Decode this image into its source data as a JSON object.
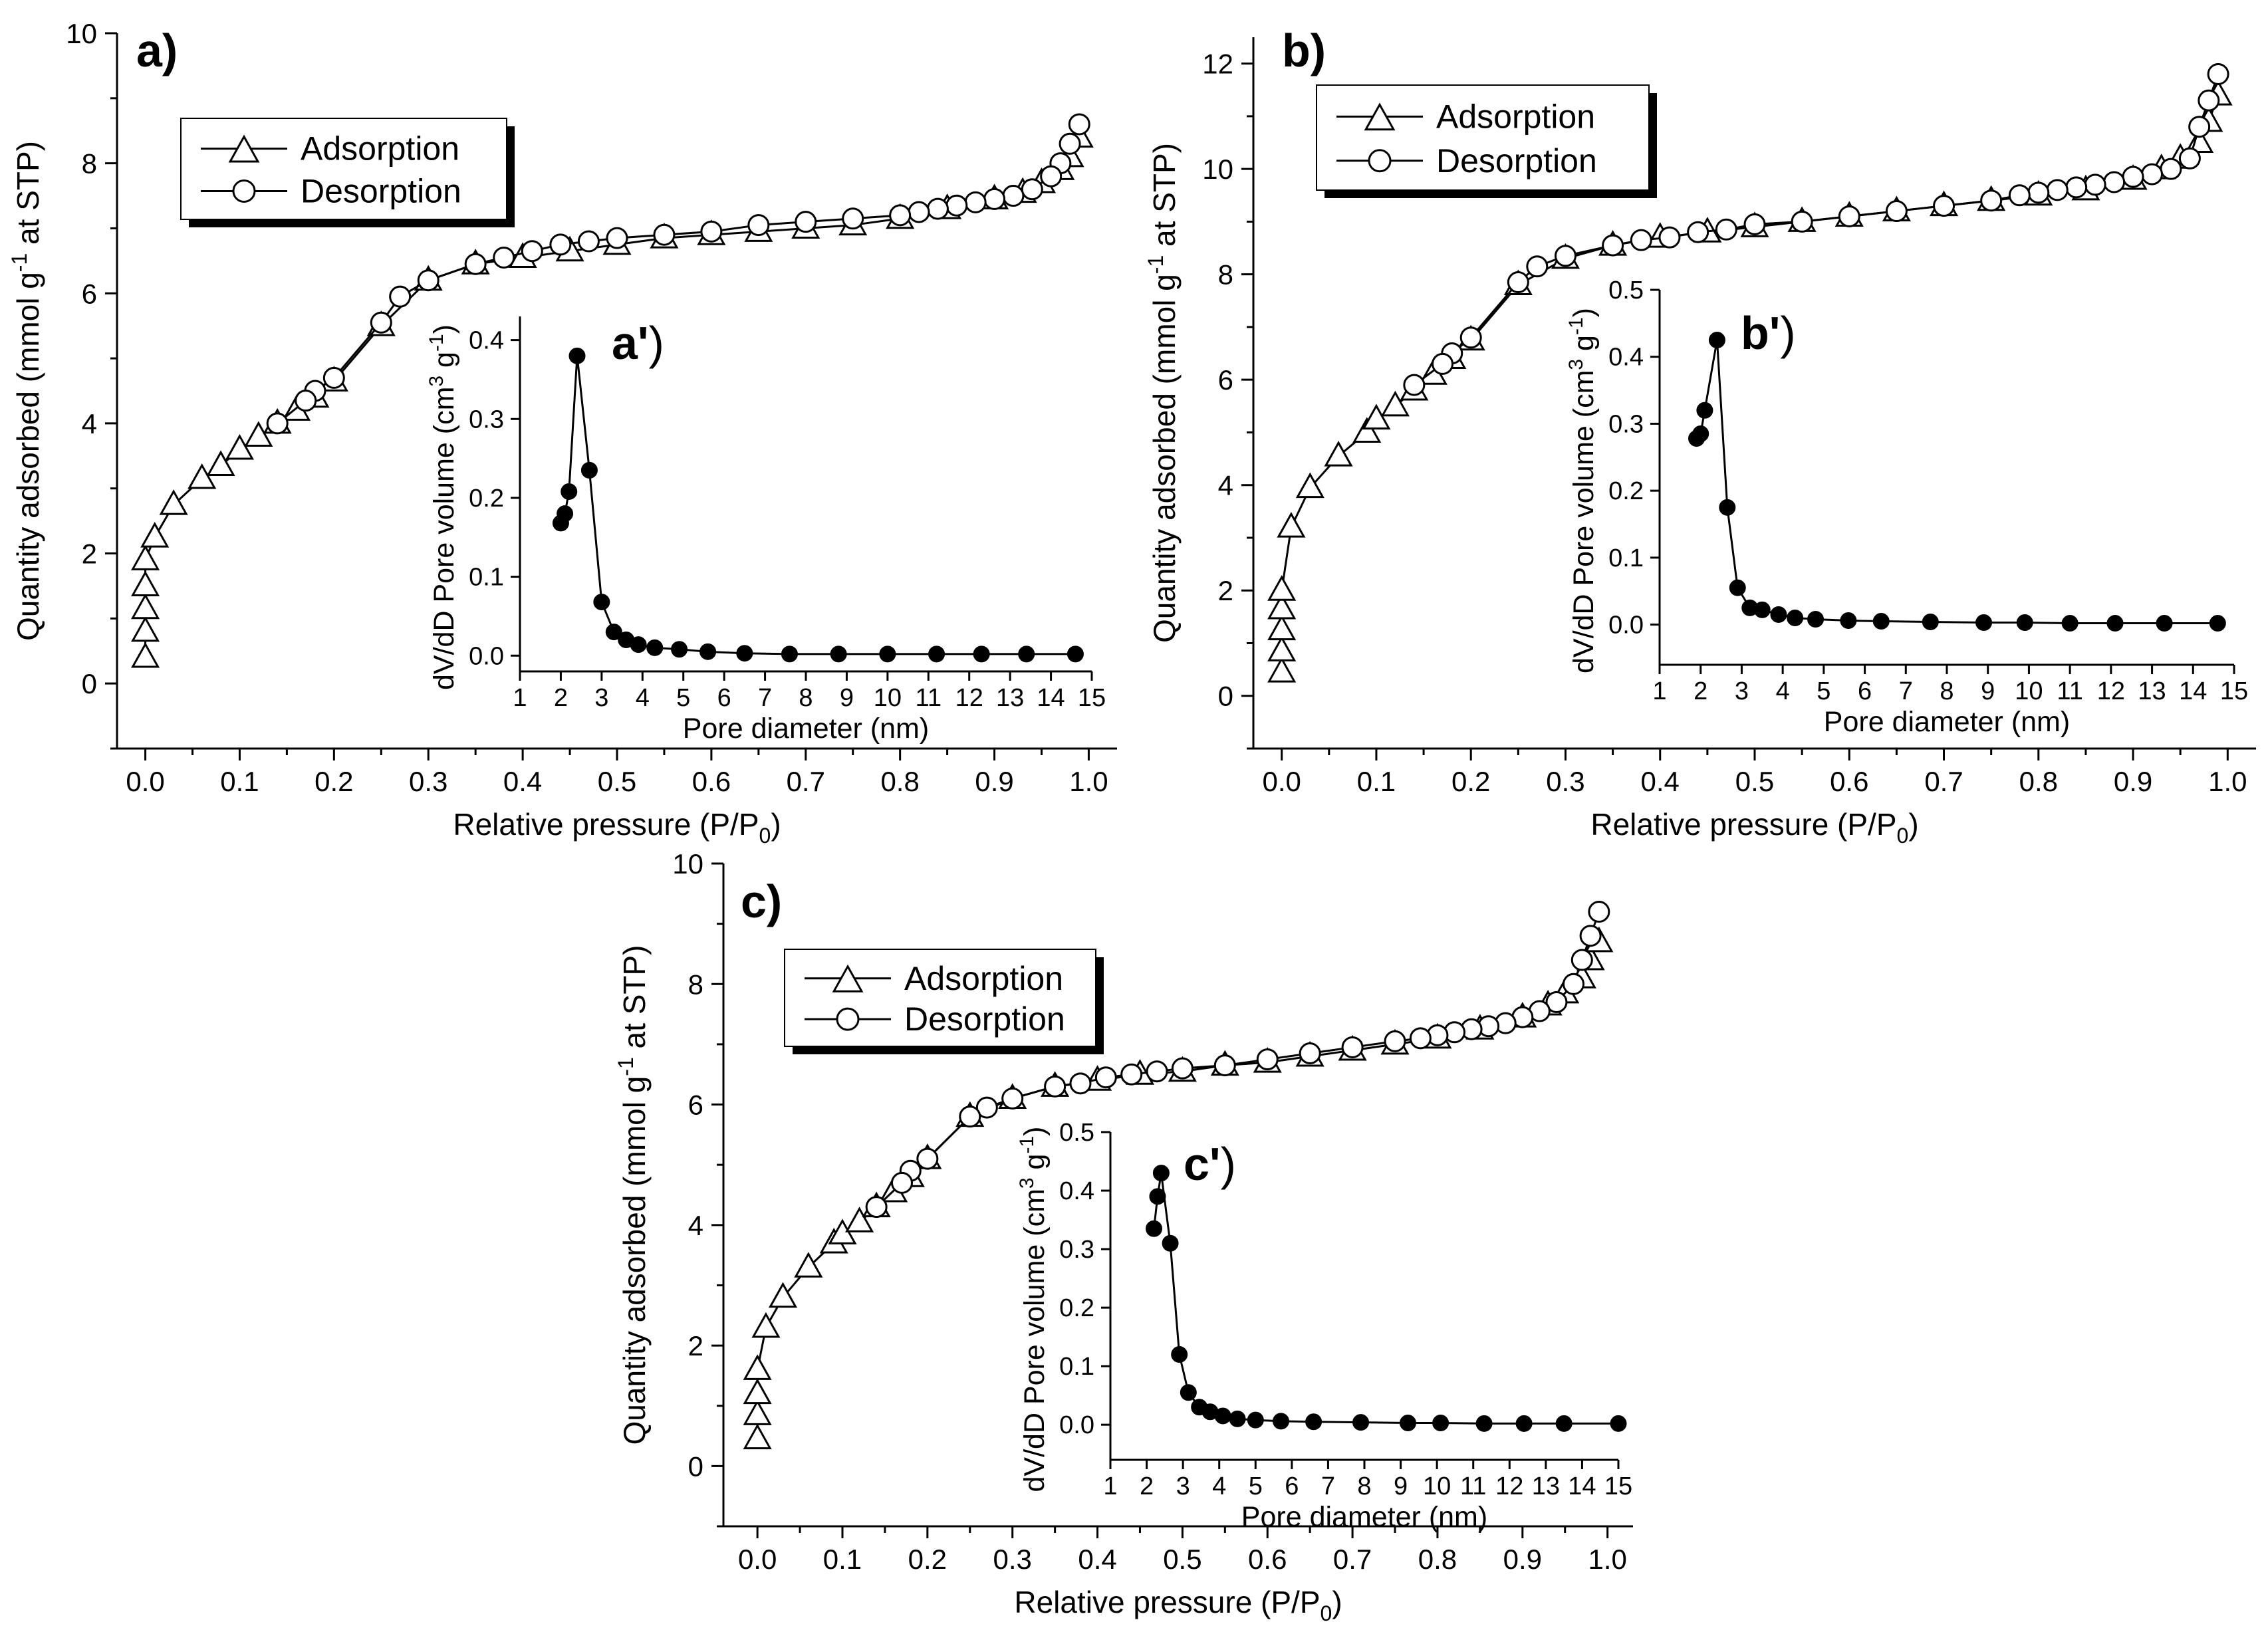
{
  "chart_data": [
    {
      "type": "line",
      "panel_label": "a)",
      "xlabel": "Relative pressure (P/P",
      "xlabel_sub": "0",
      "xlabel_close": ")",
      "ylabel": "Quantity adsorbed (mmol g",
      "ylabel_sup": "-1",
      "ylabel_rest": " at STP)",
      "xlim": [
        -0.03,
        1.03
      ],
      "ylim": [
        -1,
        10
      ],
      "xticks": [
        0.0,
        0.1,
        0.2,
        0.3,
        0.4,
        0.5,
        0.6,
        0.7,
        0.8,
        0.9,
        1.0
      ],
      "xtick_labels": [
        "0.0",
        "0.1",
        "0.2",
        "0.3",
        "0.4",
        "0.5",
        "0.6",
        "0.7",
        "0.8",
        "0.9",
        "1.0"
      ],
      "yticks": [
        0,
        2,
        4,
        6,
        8,
        10
      ],
      "ytick_labels": [
        "0",
        "2",
        "4",
        "6",
        "8",
        "10"
      ],
      "legend": [
        "Adsorption",
        "Desorption"
      ],
      "series": [
        {
          "name": "Adsorption",
          "marker": "triangle",
          "x": [
            0.0,
            0.0,
            0.0,
            0.0,
            0.0,
            0.01,
            0.03,
            0.06,
            0.08,
            0.1,
            0.12,
            0.14,
            0.16,
            0.18,
            0.2,
            0.25,
            0.3,
            0.35,
            0.4,
            0.45,
            0.5,
            0.55,
            0.6,
            0.65,
            0.7,
            0.75,
            0.8,
            0.85,
            0.9,
            0.93,
            0.95,
            0.97,
            0.98,
            0.99
          ],
          "y": [
            0.4,
            0.8,
            1.15,
            1.5,
            1.9,
            2.25,
            2.75,
            3.15,
            3.35,
            3.6,
            3.8,
            4.0,
            4.2,
            4.4,
            4.65,
            5.5,
            6.2,
            6.45,
            6.55,
            6.65,
            6.75,
            6.85,
            6.9,
            6.95,
            7.0,
            7.05,
            7.15,
            7.3,
            7.45,
            7.55,
            7.7,
            7.9,
            8.1,
            8.4
          ]
        },
        {
          "name": "Desorption",
          "marker": "circle",
          "x": [
            0.99,
            0.98,
            0.97,
            0.96,
            0.94,
            0.92,
            0.9,
            0.88,
            0.86,
            0.84,
            0.82,
            0.8,
            0.75,
            0.7,
            0.65,
            0.6,
            0.55,
            0.5,
            0.47,
            0.44,
            0.41,
            0.38,
            0.35,
            0.3,
            0.27,
            0.25,
            0.2,
            0.18,
            0.17,
            0.14
          ],
          "y": [
            8.6,
            8.3,
            8.0,
            7.8,
            7.6,
            7.5,
            7.45,
            7.4,
            7.35,
            7.3,
            7.25,
            7.2,
            7.15,
            7.1,
            7.05,
            6.95,
            6.9,
            6.85,
            6.8,
            6.75,
            6.65,
            6.55,
            6.45,
            6.2,
            5.95,
            5.55,
            4.7,
            4.5,
            4.35,
            4.0
          ]
        }
      ],
      "inset": {
        "label": "a'",
        "label_close": ")",
        "xlabel": "Pore diameter (nm)",
        "ylabel": "dV/dD Pore volume (cm",
        "ylabel_sup1": "3",
        "ylabel_mid": " g",
        "ylabel_sup2": "-1",
        "ylabel_close": ")",
        "xlim": [
          1,
          15
        ],
        "ylim": [
          -0.02,
          0.43
        ],
        "xticks": [
          1,
          2,
          3,
          4,
          5,
          6,
          7,
          8,
          9,
          10,
          11,
          12,
          13,
          14,
          15
        ],
        "xtick_labels": [
          "1",
          "2",
          "3",
          "4",
          "5",
          "6",
          "7",
          "8",
          "9",
          "10",
          "11",
          "12",
          "13",
          "14",
          "15"
        ],
        "yticks": [
          0.0,
          0.1,
          0.2,
          0.3,
          0.4
        ],
        "ytick_labels": [
          "0.0",
          "0.1",
          "0.2",
          "0.3",
          "0.4"
        ],
        "x": [
          2.0,
          2.1,
          2.2,
          2.4,
          2.7,
          3.0,
          3.3,
          3.6,
          3.9,
          4.3,
          4.9,
          5.6,
          6.5,
          7.6,
          8.8,
          10.0,
          11.2,
          12.3,
          13.4,
          14.6
        ],
        "y": [
          0.168,
          0.18,
          0.208,
          0.38,
          0.235,
          0.068,
          0.03,
          0.02,
          0.014,
          0.01,
          0.008,
          0.005,
          0.003,
          0.002,
          0.002,
          0.002,
          0.002,
          0.002,
          0.002,
          0.002
        ]
      }
    },
    {
      "type": "line",
      "panel_label": "b)",
      "xlabel": "Relative pressure (P/P",
      "xlabel_sub": "0",
      "xlabel_close": ")",
      "ylabel": "Quantity adsorbed (mmol g",
      "ylabel_sup": "-1",
      "ylabel_rest": " at STP)",
      "xlim": [
        -0.03,
        1.03
      ],
      "ylim": [
        -1,
        12.5
      ],
      "xticks": [
        0.0,
        0.1,
        0.2,
        0.3,
        0.4,
        0.5,
        0.6,
        0.7,
        0.8,
        0.9,
        1.0
      ],
      "xtick_labels": [
        "0.0",
        "0.1",
        "0.2",
        "0.3",
        "0.4",
        "0.5",
        "0.6",
        "0.7",
        "0.8",
        "0.9",
        "1.0"
      ],
      "yticks": [
        0,
        2,
        4,
        6,
        8,
        10,
        12
      ],
      "ytick_labels": [
        "0",
        "2",
        "4",
        "6",
        "8",
        "10",
        "12"
      ],
      "legend": [
        "Adsorption",
        "Desorption"
      ],
      "series": [
        {
          "name": "Adsorption",
          "marker": "triangle",
          "x": [
            0.0,
            0.0,
            0.0,
            0.0,
            0.0,
            0.01,
            0.03,
            0.06,
            0.09,
            0.1,
            0.12,
            0.14,
            0.16,
            0.18,
            0.2,
            0.25,
            0.3,
            0.35,
            0.4,
            0.45,
            0.5,
            0.55,
            0.6,
            0.65,
            0.7,
            0.75,
            0.8,
            0.85,
            0.9,
            0.93,
            0.95,
            0.97,
            0.98,
            0.99
          ],
          "y": [
            0.45,
            0.85,
            1.25,
            1.65,
            2.0,
            3.2,
            3.95,
            4.55,
            5.0,
            5.25,
            5.5,
            5.8,
            6.1,
            6.4,
            6.75,
            7.8,
            8.3,
            8.55,
            8.7,
            8.8,
            8.9,
            9.0,
            9.1,
            9.2,
            9.3,
            9.4,
            9.5,
            9.6,
            9.8,
            10.0,
            10.2,
            10.5,
            10.9,
            11.4
          ]
        },
        {
          "name": "Desorption",
          "marker": "circle",
          "x": [
            0.99,
            0.98,
            0.97,
            0.96,
            0.94,
            0.92,
            0.9,
            0.88,
            0.86,
            0.84,
            0.82,
            0.8,
            0.78,
            0.75,
            0.7,
            0.65,
            0.6,
            0.55,
            0.5,
            0.47,
            0.44,
            0.41,
            0.38,
            0.35,
            0.3,
            0.27,
            0.25,
            0.2,
            0.18,
            0.17,
            0.14
          ],
          "y": [
            11.8,
            11.3,
            10.8,
            10.2,
            10.0,
            9.9,
            9.85,
            9.75,
            9.7,
            9.65,
            9.6,
            9.55,
            9.5,
            9.4,
            9.3,
            9.2,
            9.1,
            9.0,
            8.95,
            8.85,
            8.8,
            8.7,
            8.65,
            8.55,
            8.35,
            8.15,
            7.85,
            6.8,
            6.5,
            6.3,
            5.9
          ]
        }
      ],
      "inset": {
        "label": "b'",
        "label_close": ")",
        "xlabel": "Pore diameter (nm)",
        "ylabel": "dV/dD Pore volume (cm",
        "ylabel_sup1": "3",
        "ylabel_mid": " g",
        "ylabel_sup2": "-1",
        "ylabel_close": ")",
        "xlim": [
          1,
          15
        ],
        "ylim": [
          -0.06,
          0.5
        ],
        "xticks": [
          1,
          2,
          3,
          4,
          5,
          6,
          7,
          8,
          9,
          10,
          11,
          12,
          13,
          14,
          15
        ],
        "xtick_labels": [
          "1",
          "2",
          "3",
          "4",
          "5",
          "6",
          "7",
          "8",
          "9",
          "10",
          "11",
          "12",
          "13",
          "14",
          "15"
        ],
        "yticks": [
          0.0,
          0.1,
          0.2,
          0.3,
          0.4,
          0.5
        ],
        "ytick_labels": [
          "0.0",
          "0.1",
          "0.2",
          "0.3",
          "0.4",
          "0.5"
        ],
        "x": [
          1.9,
          2.0,
          2.1,
          2.4,
          2.65,
          2.9,
          3.2,
          3.5,
          3.9,
          4.3,
          4.8,
          5.6,
          6.4,
          7.6,
          8.9,
          9.9,
          11.0,
          12.1,
          13.3,
          14.6
        ],
        "y": [
          0.278,
          0.285,
          0.32,
          0.425,
          0.175,
          0.055,
          0.025,
          0.022,
          0.015,
          0.01,
          0.008,
          0.006,
          0.005,
          0.004,
          0.003,
          0.003,
          0.002,
          0.002,
          0.002,
          0.002
        ]
      }
    },
    {
      "type": "line",
      "panel_label": "c)",
      "xlabel": "Relative pressure (P/P",
      "xlabel_sub": "0",
      "xlabel_close": ")",
      "ylabel": "Quantity adsorbed (mmol g",
      "ylabel_sup": "-1",
      "ylabel_rest": " at STP)",
      "xlim": [
        -0.04,
        1.03
      ],
      "ylim": [
        -1,
        10
      ],
      "xticks": [
        0.0,
        0.1,
        0.2,
        0.3,
        0.4,
        0.5,
        0.6,
        0.7,
        0.8,
        0.9,
        1.0
      ],
      "xtick_labels": [
        "0.0",
        "0.1",
        "0.2",
        "0.3",
        "0.4",
        "0.5",
        "0.6",
        "0.7",
        "0.8",
        "0.9",
        "1.0"
      ],
      "yticks": [
        0,
        2,
        4,
        6,
        8,
        10
      ],
      "ytick_labels": [
        "0",
        "2",
        "4",
        "6",
        "8",
        "10"
      ],
      "legend": [
        "Adsorption",
        "Desorption"
      ],
      "series": [
        {
          "name": "Adsorption",
          "marker": "triangle",
          "x": [
            0.0,
            0.0,
            0.0,
            0.0,
            0.01,
            0.03,
            0.06,
            0.09,
            0.1,
            0.12,
            0.14,
            0.16,
            0.18,
            0.2,
            0.25,
            0.3,
            0.35,
            0.4,
            0.45,
            0.5,
            0.55,
            0.6,
            0.65,
            0.7,
            0.75,
            0.8,
            0.85,
            0.9,
            0.93,
            0.95,
            0.97,
            0.98,
            0.99
          ],
          "y": [
            0.45,
            0.85,
            1.2,
            1.6,
            2.3,
            2.8,
            3.3,
            3.7,
            3.85,
            4.05,
            4.3,
            4.55,
            4.8,
            5.1,
            5.8,
            6.1,
            6.3,
            6.4,
            6.5,
            6.55,
            6.65,
            6.7,
            6.8,
            6.9,
            7.0,
            7.1,
            7.25,
            7.45,
            7.65,
            7.85,
            8.1,
            8.4,
            8.7
          ]
        },
        {
          "name": "Desorption",
          "marker": "circle",
          "x": [
            0.99,
            0.98,
            0.97,
            0.96,
            0.94,
            0.92,
            0.9,
            0.88,
            0.86,
            0.84,
            0.82,
            0.8,
            0.78,
            0.75,
            0.7,
            0.65,
            0.6,
            0.55,
            0.5,
            0.47,
            0.44,
            0.41,
            0.38,
            0.35,
            0.3,
            0.27,
            0.25,
            0.2,
            0.18,
            0.17,
            0.14
          ],
          "y": [
            9.2,
            8.8,
            8.4,
            8.0,
            7.7,
            7.55,
            7.45,
            7.35,
            7.3,
            7.25,
            7.2,
            7.15,
            7.1,
            7.05,
            6.95,
            6.85,
            6.75,
            6.65,
            6.6,
            6.55,
            6.5,
            6.45,
            6.35,
            6.3,
            6.1,
            5.95,
            5.8,
            5.1,
            4.9,
            4.7,
            4.3
          ]
        }
      ],
      "inset": {
        "label": "c'",
        "label_close": ")",
        "xlabel": "Pore diameter (nm)",
        "ylabel": "dV/dD Pore volume (cm",
        "ylabel_sup1": "3",
        "ylabel_mid": " g",
        "ylabel_sup2": "-1",
        "ylabel_close": ")",
        "xlim": [
          1,
          15
        ],
        "ylim": [
          -0.06,
          0.5
        ],
        "xticks": [
          1,
          2,
          3,
          4,
          5,
          6,
          7,
          8,
          9,
          10,
          11,
          12,
          13,
          14,
          15
        ],
        "xtick_labels": [
          "1",
          "2",
          "3",
          "4",
          "5",
          "6",
          "7",
          "8",
          "9",
          "10",
          "11",
          "12",
          "13",
          "14",
          "15"
        ],
        "yticks": [
          0.0,
          0.1,
          0.2,
          0.3,
          0.4,
          0.5
        ],
        "ytick_labels": [
          "0.0",
          "0.1",
          "0.2",
          "0.3",
          "0.4",
          "0.5"
        ],
        "x": [
          2.2,
          2.3,
          2.4,
          2.65,
          2.9,
          3.15,
          3.45,
          3.75,
          4.1,
          4.5,
          5.0,
          5.7,
          6.6,
          7.9,
          9.2,
          10.1,
          11.3,
          12.4,
          13.5,
          15.0
        ],
        "y": [
          0.335,
          0.39,
          0.43,
          0.31,
          0.12,
          0.055,
          0.03,
          0.022,
          0.015,
          0.01,
          0.008,
          0.006,
          0.005,
          0.004,
          0.003,
          0.003,
          0.002,
          0.002,
          0.002,
          0.002
        ]
      }
    }
  ]
}
